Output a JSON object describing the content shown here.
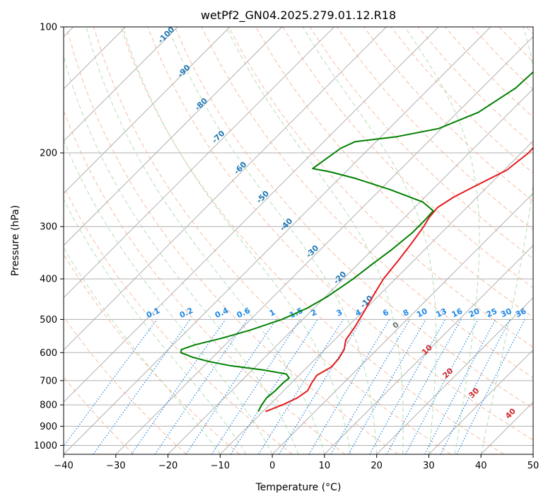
{
  "chart_data": {
    "type": "line",
    "title": "wetPf2_GN04.2025.279.01.12.R18",
    "xlabel": "Temperature (°C)",
    "ylabel": "Pressure (hPa)",
    "xlim": [
      -40,
      50
    ],
    "ylim": [
      1050,
      100
    ],
    "y_scale": "log",
    "x_ticks": [
      -40,
      -30,
      -20,
      -10,
      0,
      10,
      20,
      30,
      40,
      50
    ],
    "y_ticks": [
      100,
      200,
      300,
      400,
      500,
      600,
      700,
      800,
      900,
      1000
    ],
    "grid": true,
    "skew": true,
    "colors": {
      "temperature": "#e41a1c",
      "dewpoint": "#008000",
      "dry_adiabat": "#f4a582",
      "moist_adiabat": "#a6d8a6",
      "mixing_ratio": "#1e88e5",
      "dry_label": "#d62728",
      "moist_label": "#1f77b4"
    },
    "series": [
      {
        "name": "",
        "color": "#e41a1c",
        "points": [
          {
            "p": 830,
            "t": -9.5
          },
          {
            "p": 800,
            "t": -7.5
          },
          {
            "p": 770,
            "t": -6.0
          },
          {
            "p": 740,
            "t": -5.4
          },
          {
            "p": 710,
            "t": -6.1
          },
          {
            "p": 680,
            "t": -6.6
          },
          {
            "p": 650,
            "t": -5.4
          },
          {
            "p": 620,
            "t": -5.6
          },
          {
            "p": 590,
            "t": -6.3
          },
          {
            "p": 560,
            "t": -7.8
          },
          {
            "p": 520,
            "t": -8.6
          },
          {
            "p": 480,
            "t": -9.7
          },
          {
            "p": 440,
            "t": -11.0
          },
          {
            "p": 400,
            "t": -12.3
          },
          {
            "p": 360,
            "t": -13.0
          },
          {
            "p": 330,
            "t": -13.7
          },
          {
            "p": 300,
            "t": -14.6
          },
          {
            "p": 285,
            "t": -15.3
          },
          {
            "p": 270,
            "t": -15.6
          },
          {
            "p": 255,
            "t": -14.5
          },
          {
            "p": 240,
            "t": -12.5
          },
          {
            "p": 220,
            "t": -9.5
          },
          {
            "p": 200,
            "t": -8.6
          },
          {
            "p": 180,
            "t": -9.0
          },
          {
            "p": 160,
            "t": -10.1
          },
          {
            "p": 140,
            "t": -11.9
          },
          {
            "p": 120,
            "t": -15.2
          },
          {
            "p": 100,
            "t": -20.5
          }
        ]
      },
      {
        "name": "",
        "color": "#008000",
        "points": [
          {
            "p": 830,
            "t": -10.9
          },
          {
            "p": 800,
            "t": -11.5
          },
          {
            "p": 770,
            "t": -11.9
          },
          {
            "p": 740,
            "t": -11.6
          },
          {
            "p": 710,
            "t": -11.6
          },
          {
            "p": 690,
            "t": -11.4
          },
          {
            "p": 675,
            "t": -12.7
          },
          {
            "p": 660,
            "t": -18.0
          },
          {
            "p": 645,
            "t": -25.0
          },
          {
            "p": 630,
            "t": -30.0
          },
          {
            "p": 615,
            "t": -34.0
          },
          {
            "p": 600,
            "t": -37.0
          },
          {
            "p": 590,
            "t": -37.5
          },
          {
            "p": 575,
            "t": -35.8
          },
          {
            "p": 555,
            "t": -32.0
          },
          {
            "p": 530,
            "t": -28.0
          },
          {
            "p": 500,
            "t": -24.0
          },
          {
            "p": 470,
            "t": -21.3
          },
          {
            "p": 440,
            "t": -19.6
          },
          {
            "p": 400,
            "t": -18.1
          },
          {
            "p": 370,
            "t": -17.3
          },
          {
            "p": 340,
            "t": -16.3
          },
          {
            "p": 310,
            "t": -15.6
          },
          {
            "p": 290,
            "t": -15.6
          },
          {
            "p": 275,
            "t": -15.8
          },
          {
            "p": 262,
            "t": -19.5
          },
          {
            "p": 245,
            "t": -28.0
          },
          {
            "p": 230,
            "t": -37.0
          },
          {
            "p": 222,
            "t": -43.0
          },
          {
            "p": 218,
            "t": -47.0
          },
          {
            "p": 210,
            "t": -46.5
          },
          {
            "p": 195,
            "t": -45.5
          },
          {
            "p": 188,
            "t": -44.0
          },
          {
            "p": 183,
            "t": -37.0
          },
          {
            "p": 175,
            "t": -30.5
          },
          {
            "p": 160,
            "t": -26.0
          },
          {
            "p": 140,
            "t": -23.5
          },
          {
            "p": 120,
            "t": -23.0
          },
          {
            "p": 100,
            "t": -22.0
          }
        ]
      }
    ],
    "dry_adiabat_labels": [
      "0",
      "10",
      "20",
      "30",
      "40"
    ],
    "moist_adiabat_labels": [
      "-100",
      "-90",
      "-80",
      "-70",
      "-60",
      "-50",
      "-40",
      "-30",
      "-20",
      "-10"
    ],
    "mixing_ratio_labels": [
      "0.1",
      "0.2",
      "0.4",
      "0.6",
      "1",
      "1.5",
      "2",
      "3",
      "4",
      "6",
      "8",
      "10",
      "13",
      "16",
      "20",
      "25",
      "30",
      "36"
    ]
  }
}
